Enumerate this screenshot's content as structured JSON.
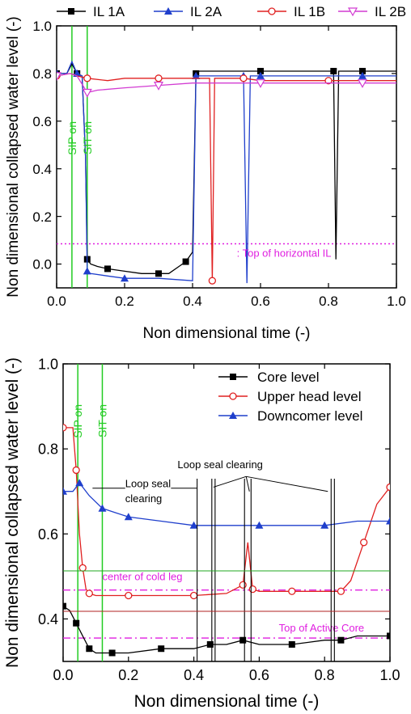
{
  "chart_data": [
    {
      "type": "line",
      "xlabel": "Non dimensional time (-)",
      "ylabel": "Non dimensional collapsed water level (-)",
      "xlim": [
        0.0,
        1.0
      ],
      "ylim": [
        -0.1,
        1.0
      ],
      "xticks": [
        "0.0",
        "0.2",
        "0.4",
        "0.6",
        "0.8",
        "1.0"
      ],
      "yticks": [
        "0.0",
        "0.2",
        "0.4",
        "0.6",
        "0.8",
        "1.0"
      ],
      "legend_position": "top",
      "series": [
        {
          "name": "IL 1A",
          "color": "#000000",
          "marker": "square",
          "x": [
            0.0,
            0.03,
            0.045,
            0.06,
            0.075,
            0.085,
            0.09,
            0.1,
            0.12,
            0.15,
            0.2,
            0.25,
            0.3,
            0.33,
            0.36,
            0.38,
            0.4,
            0.405,
            0.41,
            0.42,
            0.5,
            0.6,
            0.7,
            0.8,
            0.815,
            0.822,
            0.83,
            0.9,
            1.0
          ],
          "y": [
            0.8,
            0.8,
            0.84,
            0.8,
            0.79,
            0.45,
            0.02,
            0.0,
            -0.01,
            -0.02,
            -0.03,
            -0.04,
            -0.04,
            -0.04,
            -0.01,
            0.01,
            0.05,
            0.42,
            0.8,
            0.81,
            0.81,
            0.81,
            0.81,
            0.81,
            0.81,
            0.02,
            0.81,
            0.81,
            0.81
          ]
        },
        {
          "name": "IL 2A",
          "color": "#1f3fcc",
          "marker": "triangle",
          "x": [
            0.0,
            0.03,
            0.045,
            0.06,
            0.075,
            0.085,
            0.09,
            0.1,
            0.15,
            0.2,
            0.3,
            0.4,
            0.41,
            0.42,
            0.5,
            0.55,
            0.56,
            0.57,
            0.6,
            0.7,
            0.8,
            0.9,
            1.0
          ],
          "y": [
            0.8,
            0.8,
            0.85,
            0.8,
            0.79,
            0.45,
            -0.03,
            -0.04,
            -0.05,
            -0.06,
            -0.06,
            -0.07,
            0.79,
            0.79,
            0.79,
            0.79,
            -0.08,
            0.79,
            0.79,
            0.79,
            0.79,
            0.79,
            0.79
          ]
        },
        {
          "name": "IL 1B",
          "color": "#e02020",
          "marker": "circle",
          "x": [
            0.0,
            0.04,
            0.06,
            0.09,
            0.15,
            0.2,
            0.3,
            0.4,
            0.45,
            0.458,
            0.465,
            0.5,
            0.55,
            0.6,
            0.7,
            0.8,
            0.9,
            1.0
          ],
          "y": [
            0.79,
            0.8,
            0.79,
            0.78,
            0.77,
            0.78,
            0.78,
            0.78,
            0.78,
            -0.07,
            0.78,
            0.78,
            0.78,
            0.77,
            0.77,
            0.77,
            0.77,
            0.77
          ]
        },
        {
          "name": "IL 2B",
          "color": "#d23cd2",
          "marker": "triangle-down",
          "x": [
            0.0,
            0.04,
            0.06,
            0.09,
            0.12,
            0.2,
            0.3,
            0.4,
            0.5,
            0.6,
            0.7,
            0.8,
            0.9,
            1.0
          ],
          "y": [
            0.79,
            0.8,
            0.79,
            0.72,
            0.73,
            0.74,
            0.75,
            0.76,
            0.76,
            0.76,
            0.76,
            0.76,
            0.76,
            0.76
          ]
        }
      ],
      "vlines": [
        {
          "x": 0.045,
          "label": "SIP on",
          "color": "#22cc22"
        },
        {
          "x": 0.09,
          "label": "SIT on",
          "color": "#22cc22"
        }
      ],
      "hlines": [
        {
          "y": 0.085,
          "label": ": Top of horizontal IL",
          "color": "#e01fe0",
          "style": "dotted"
        }
      ]
    },
    {
      "type": "line",
      "xlabel": "Non dimensional time (-)",
      "ylabel": "Non dimensional collapsed water level (-)",
      "xlim": [
        0.0,
        1.0
      ],
      "ylim": [
        0.3,
        1.0
      ],
      "xticks": [
        "0.0",
        "0.2",
        "0.4",
        "0.6",
        "0.8",
        "1.0"
      ],
      "yticks": [
        "0.4",
        "0.6",
        "0.8",
        "1.0"
      ],
      "legend_position": "top-right",
      "series": [
        {
          "name": "Core level",
          "color": "#000000",
          "marker": "square",
          "x": [
            0.0,
            0.02,
            0.04,
            0.06,
            0.08,
            0.1,
            0.15,
            0.2,
            0.3,
            0.4,
            0.45,
            0.5,
            0.55,
            0.6,
            0.7,
            0.8,
            0.85,
            0.9,
            1.0
          ],
          "y": [
            0.43,
            0.42,
            0.39,
            0.36,
            0.33,
            0.32,
            0.32,
            0.32,
            0.33,
            0.33,
            0.34,
            0.34,
            0.35,
            0.34,
            0.34,
            0.35,
            0.35,
            0.36,
            0.36
          ]
        },
        {
          "name": "Upper head level",
          "color": "#e02020",
          "marker": "circle",
          "x": [
            0.0,
            0.03,
            0.04,
            0.05,
            0.06,
            0.07,
            0.08,
            0.1,
            0.2,
            0.3,
            0.4,
            0.5,
            0.55,
            0.565,
            0.58,
            0.6,
            0.7,
            0.8,
            0.85,
            0.88,
            0.92,
            0.96,
            1.0
          ],
          "y": [
            0.85,
            0.85,
            0.75,
            0.6,
            0.52,
            0.47,
            0.46,
            0.455,
            0.455,
            0.455,
            0.455,
            0.46,
            0.48,
            0.58,
            0.47,
            0.465,
            0.465,
            0.465,
            0.465,
            0.49,
            0.58,
            0.67,
            0.71
          ]
        },
        {
          "name": "Downcomer level",
          "color": "#1f3fcc",
          "marker": "triangle",
          "x": [
            0.0,
            0.03,
            0.05,
            0.08,
            0.12,
            0.16,
            0.2,
            0.3,
            0.4,
            0.5,
            0.6,
            0.7,
            0.8,
            0.9,
            1.0
          ],
          "y": [
            0.7,
            0.7,
            0.72,
            0.69,
            0.66,
            0.65,
            0.64,
            0.63,
            0.62,
            0.62,
            0.62,
            0.62,
            0.62,
            0.63,
            0.63
          ]
        }
      ],
      "vlines": [
        {
          "x": 0.045,
          "label": "SIP on",
          "color": "#22cc22"
        },
        {
          "x": 0.12,
          "label": "SIT on",
          "color": "#22cc22"
        }
      ],
      "hlines": [
        {
          "y": 0.468,
          "label": "center of cold leg",
          "color": "#e01fe0",
          "style": "dashdot"
        },
        {
          "y": 0.355,
          "label": "Top of Active Core",
          "color": "#e01fe0",
          "style": "dashdot"
        }
      ],
      "annotations": [
        "Loop seal clearing",
        "Loop seal clearing"
      ]
    }
  ]
}
